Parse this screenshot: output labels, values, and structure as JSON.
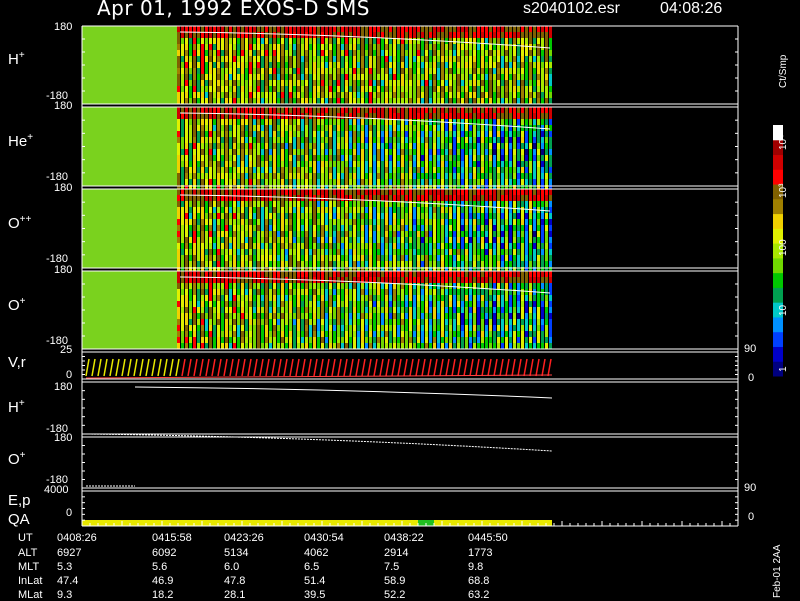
{
  "header": {
    "title": "Apr 01, 1992    EXOS-D SMS",
    "file": "s2040102.esr",
    "time": "04:08:26"
  },
  "colorbar": {
    "unit": "Ct/Smp",
    "ticks": [
      "1",
      "10",
      "100",
      "10³",
      "10⁴"
    ],
    "colors": [
      "#00007f",
      "#0000c8",
      "#0040ff",
      "#0090ff",
      "#00c8c8",
      "#00a050",
      "#00c800",
      "#70d800",
      "#a8e800",
      "#e0f000",
      "#f0d000",
      "#a08000",
      "#806000",
      "#ff0000",
      "#d00000",
      "#a00000",
      "#ffffff"
    ]
  },
  "footer_side": "Feb-01 2AA",
  "chart_data": {
    "type": "heatmap",
    "title": "Apr 01, 1992    EXOS-D SMS",
    "panels": [
      {
        "name": "H",
        "sup": "+",
        "ytop": "180",
        "ybot": "-180",
        "kind": "spectrogram"
      },
      {
        "name": "He",
        "sup": "+",
        "ytop": "180",
        "ybot": "-180",
        "kind": "spectrogram"
      },
      {
        "name": "O",
        "sup": "++",
        "ytop": "180",
        "ybot": "-180",
        "kind": "spectrogram"
      },
      {
        "name": "O",
        "sup": "+",
        "ytop": "180",
        "ybot": "-180",
        "kind": "spectrogram"
      },
      {
        "name": "V,r",
        "sup": "",
        "ytop": "25",
        "ybot": "0",
        "right_top": "90",
        "right_bot": "0",
        "kind": "line"
      },
      {
        "name": "H",
        "sup": "+",
        "ytop": "180",
        "ybot": "-180",
        "kind": "line"
      },
      {
        "name": "O",
        "sup": "+",
        "ytop": "180",
        "ybot": "-180",
        "kind": "line"
      },
      {
        "name": "E,p",
        "sup": "",
        "ytop": "4000",
        "ybot": "",
        "right_top": "90",
        "right_bot": "0",
        "kind": "line"
      },
      {
        "name": "QA",
        "sup": "",
        "ytop": "",
        "ybot": "0",
        "kind": "bar"
      }
    ],
    "time_axis": {
      "rows": [
        {
          "label": "UT",
          "values": [
            "0408:26",
            "0415:58",
            "0423:26",
            "0430:54",
            "0438:22",
            "0445:50"
          ]
        },
        {
          "label": "ALT",
          "values": [
            "6927",
            "6092",
            "5134",
            "4062",
            "2914",
            "1773"
          ]
        },
        {
          "label": "MLT",
          "values": [
            "5.3",
            "5.6",
            "6.0",
            "6.5",
            "7.5",
            "9.8"
          ]
        },
        {
          "label": "InLat",
          "values": [
            "47.4",
            "46.9",
            "47.8",
            "51.4",
            "58.9",
            "68.8"
          ]
        },
        {
          "label": "MLat",
          "values": [
            "9.3",
            "18.2",
            "28.1",
            "39.5",
            "52.2",
            "63.2"
          ]
        }
      ]
    }
  }
}
